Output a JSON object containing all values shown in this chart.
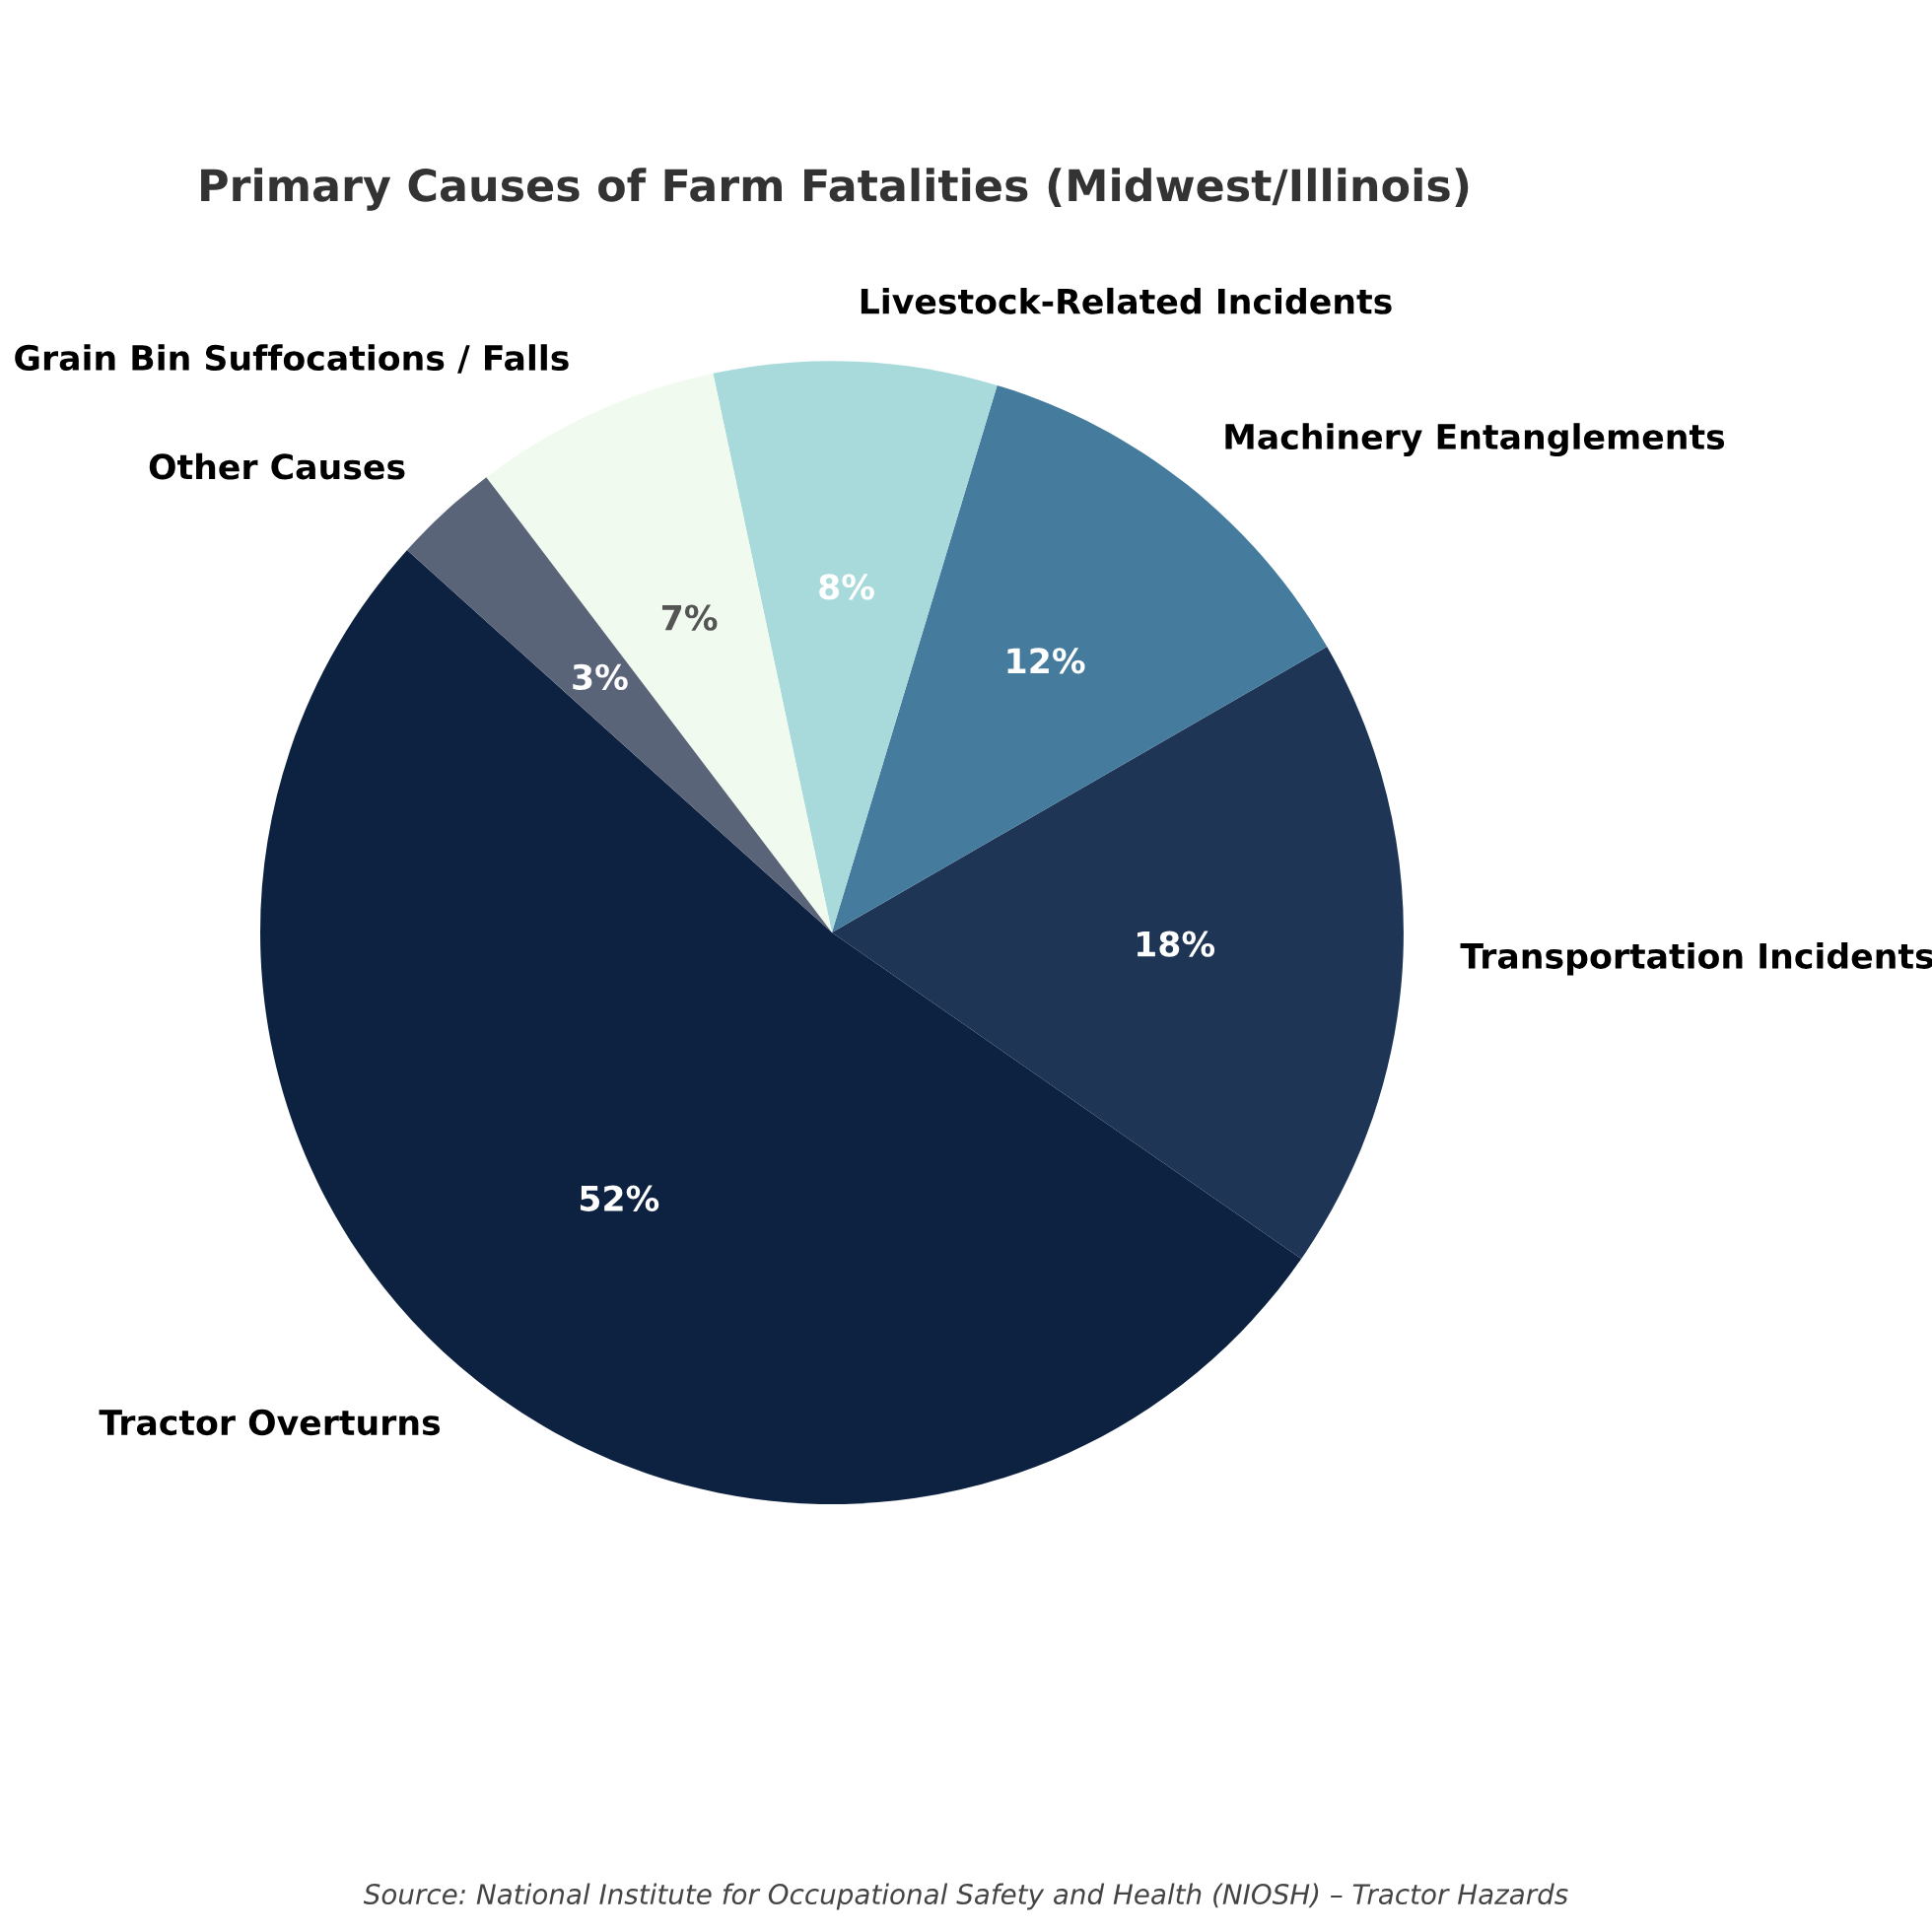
{
  "chart_data": {
    "type": "pie",
    "title": "Primary Causes of Farm Fatalities (Midwest/Illinois)",
    "categories": [
      "Tractor Overturns",
      "Transportation Incidents",
      "Machinery Entanglements",
      "Livestock-Related Incidents",
      "Grain Bin Suffocations / Falls",
      "Other Causes"
    ],
    "values": [
      52,
      18,
      12,
      8,
      7,
      3
    ],
    "colors": [
      "#0d2240",
      "#1e3556",
      "#457b9d",
      "#a8dadc",
      "#f1faee",
      "#5a6478"
    ],
    "value_labels": [
      "52%",
      "18%",
      "12%",
      "8%",
      "7%",
      "3%"
    ],
    "annotations": [
      "Source: National Institute for Occupational Safety and Health (NIOSH) – Tractor Hazards"
    ]
  }
}
